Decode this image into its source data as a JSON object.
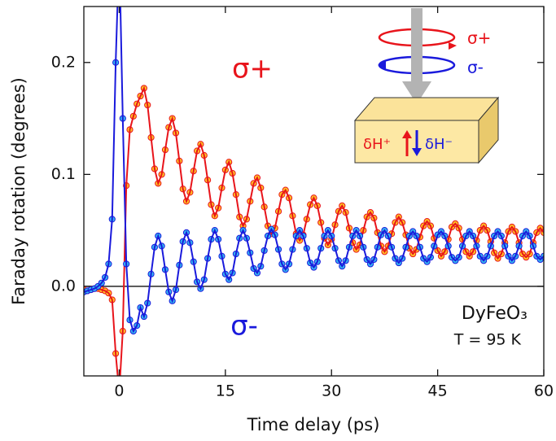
{
  "chart_data": {
    "type": "line",
    "x_label": "Time delay (ps)",
    "y_label": "Faraday rotation (degrees)",
    "xlim": [
      -5,
      60
    ],
    "ylim": [
      -0.08,
      0.25
    ],
    "xticks": [
      0,
      15,
      30,
      45,
      60
    ],
    "yticks": [
      {
        "value": 0,
        "label": "0.0"
      },
      0.1,
      0.2
    ],
    "zero_line": true,
    "markers": true,
    "x": [
      -5,
      -4.5,
      -4,
      -3.5,
      -3,
      -2.5,
      -2,
      -1.5,
      -1,
      -0.5,
      0,
      0.5,
      1,
      1.5,
      2,
      2.5,
      3,
      3.5,
      4,
      4.5,
      5,
      5.5,
      6,
      6.5,
      7,
      7.5,
      8,
      8.5,
      9,
      9.5,
      10,
      10.5,
      11,
      11.5,
      12,
      12.5,
      13,
      13.5,
      14,
      14.5,
      15,
      15.5,
      16,
      16.5,
      17,
      17.5,
      18,
      18.5,
      19,
      19.5,
      20,
      20.5,
      21,
      21.5,
      22,
      22.5,
      23,
      23.5,
      24,
      24.5,
      25,
      25.5,
      26,
      26.5,
      27,
      27.5,
      28,
      28.5,
      29,
      29.5,
      30,
      30.5,
      31,
      31.5,
      32,
      32.5,
      33,
      33.5,
      34,
      34.5,
      35,
      35.5,
      36,
      36.5,
      37,
      37.5,
      38,
      38.5,
      39,
      39.5,
      40,
      40.5,
      41,
      41.5,
      42,
      42.5,
      43,
      43.5,
      44,
      44.5,
      45,
      45.5,
      46,
      46.5,
      47,
      47.5,
      48,
      48.5,
      49,
      49.5,
      50,
      50.5,
      51,
      51.5,
      52,
      52.5,
      53,
      53.5,
      54,
      54.5,
      55,
      55.5,
      56,
      56.5,
      57,
      57.5,
      58,
      58.5,
      59,
      59.5,
      60
    ],
    "series": [
      {
        "name": "σ+",
        "color": "#e8141b",
        "marker_color": "#ffc425",
        "values": [
          -0.003,
          -0.004,
          -0.003,
          -0.002,
          -0.002,
          -0.003,
          -0.004,
          -0.006,
          -0.012,
          -0.06,
          -0.095,
          -0.04,
          0.09,
          0.14,
          0.152,
          0.163,
          0.17,
          0.177,
          0.162,
          0.133,
          0.105,
          0.092,
          0.1,
          0.122,
          0.142,
          0.15,
          0.137,
          0.112,
          0.087,
          0.076,
          0.084,
          0.103,
          0.121,
          0.127,
          0.117,
          0.095,
          0.073,
          0.063,
          0.07,
          0.088,
          0.104,
          0.111,
          0.101,
          0.082,
          0.062,
          0.054,
          0.06,
          0.076,
          0.092,
          0.097,
          0.088,
          0.071,
          0.054,
          0.047,
          0.052,
          0.067,
          0.082,
          0.086,
          0.079,
          0.063,
          0.047,
          0.041,
          0.046,
          0.06,
          0.073,
          0.079,
          0.072,
          0.057,
          0.043,
          0.037,
          0.042,
          0.055,
          0.067,
          0.072,
          0.066,
          0.052,
          0.039,
          0.033,
          0.037,
          0.05,
          0.062,
          0.066,
          0.061,
          0.048,
          0.036,
          0.031,
          0.036,
          0.047,
          0.057,
          0.062,
          0.057,
          0.046,
          0.034,
          0.029,
          0.033,
          0.044,
          0.054,
          0.058,
          0.054,
          0.043,
          0.032,
          0.027,
          0.031,
          0.042,
          0.053,
          0.056,
          0.052,
          0.042,
          0.031,
          0.027,
          0.031,
          0.041,
          0.05,
          0.054,
          0.05,
          0.04,
          0.03,
          0.025,
          0.029,
          0.039,
          0.049,
          0.053,
          0.049,
          0.039,
          0.029,
          0.026,
          0.029,
          0.039,
          0.048,
          0.052,
          0.048
        ]
      },
      {
        "name": "σ-",
        "color": "#1a1adc",
        "marker_color": "#35b8f0",
        "values": [
          -0.005,
          -0.004,
          -0.003,
          -0.002,
          0,
          0.003,
          0.008,
          0.02,
          0.06,
          0.2,
          0.3,
          0.15,
          0.02,
          -0.03,
          -0.04,
          -0.035,
          -0.019,
          -0.027,
          -0.015,
          0.011,
          0.035,
          0.045,
          0.036,
          0.015,
          -0.005,
          -0.013,
          -0.003,
          0.019,
          0.04,
          0.048,
          0.039,
          0.022,
          0.004,
          -0.002,
          0.006,
          0.025,
          0.042,
          0.05,
          0.042,
          0.027,
          0.011,
          0.006,
          0.012,
          0.029,
          0.043,
          0.05,
          0.043,
          0.03,
          0.016,
          0.012,
          0.018,
          0.032,
          0.045,
          0.051,
          0.046,
          0.033,
          0.02,
          0.015,
          0.02,
          0.033,
          0.045,
          0.05,
          0.045,
          0.034,
          0.021,
          0.017,
          0.022,
          0.034,
          0.045,
          0.05,
          0.045,
          0.034,
          0.023,
          0.018,
          0.023,
          0.035,
          0.045,
          0.05,
          0.045,
          0.035,
          0.024,
          0.02,
          0.024,
          0.035,
          0.046,
          0.05,
          0.045,
          0.035,
          0.025,
          0.021,
          0.025,
          0.035,
          0.045,
          0.049,
          0.045,
          0.035,
          0.025,
          0.022,
          0.026,
          0.036,
          0.046,
          0.049,
          0.045,
          0.036,
          0.026,
          0.023,
          0.026,
          0.036,
          0.045,
          0.049,
          0.045,
          0.036,
          0.027,
          0.023,
          0.027,
          0.036,
          0.045,
          0.049,
          0.045,
          0.036,
          0.027,
          0.023,
          0.027,
          0.036,
          0.045,
          0.049,
          0.045,
          0.036,
          0.027,
          0.024,
          0.027
        ]
      }
    ],
    "annotations": [
      "σ+",
      "σ-",
      "DyFeO₃",
      "T = 95 K"
    ],
    "inset": {
      "labels": [
        "σ+",
        "σ-",
        "δH⁺",
        "δH⁻"
      ]
    }
  }
}
